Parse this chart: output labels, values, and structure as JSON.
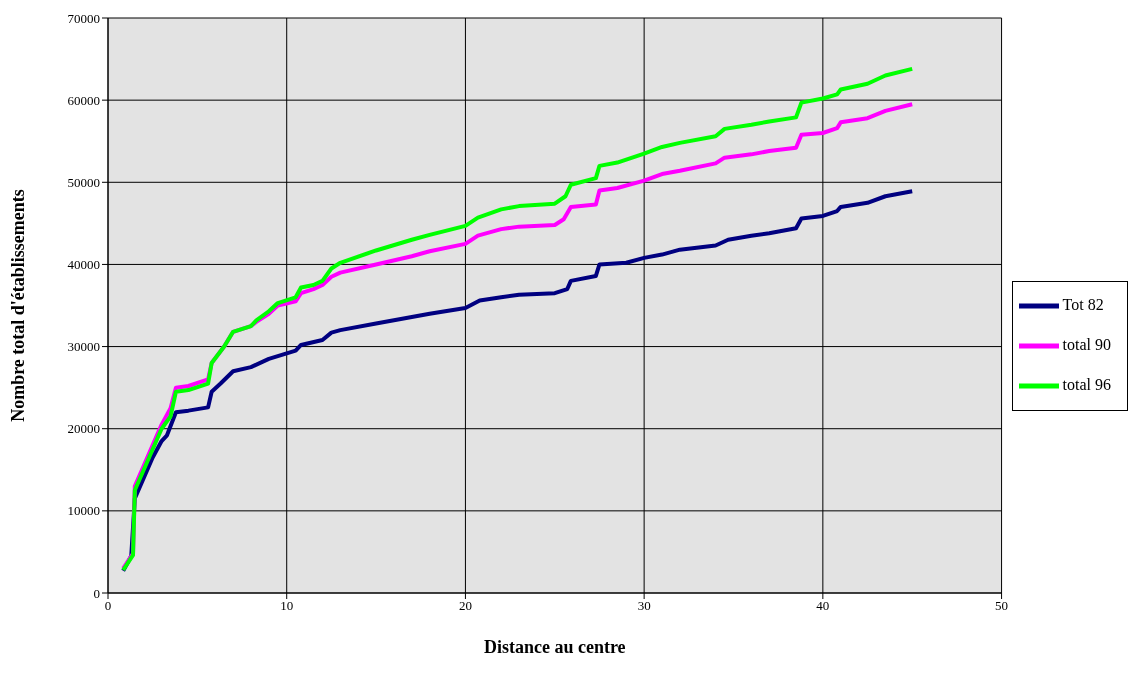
{
  "chart_data": {
    "type": "line",
    "xlabel": "Distance au centre",
    "ylabel": "Nombre total d'établissements",
    "xlim": [
      0,
      50
    ],
    "xticks": [
      0,
      10,
      20,
      30,
      40,
      50
    ],
    "ylim": [
      0,
      70000
    ],
    "yticks": [
      0,
      10000,
      20000,
      30000,
      40000,
      50000,
      60000,
      70000
    ],
    "grid": true,
    "legend": "right",
    "marker": "none",
    "line_style": "solid",
    "series": [
      {
        "name": "Tot 82",
        "color": "#000080",
        "x": [
          0.85,
          1.3,
          1.5,
          2,
          2.5,
          3,
          3.3,
          3.8,
          4.5,
          5.6,
          5.8,
          6.3,
          7,
          8,
          9,
          10.5,
          10.8,
          12,
          12.5,
          13,
          15,
          17,
          18,
          20,
          20.8,
          22,
          23,
          25,
          25.7,
          25.9,
          27.3,
          27.5,
          29,
          30,
          31,
          32,
          34,
          34.7,
          36,
          37,
          38.5,
          38.8,
          40,
          40.8,
          41,
          42.5,
          43.5,
          45
        ],
        "values": [
          2700,
          4500,
          11500,
          14000,
          16500,
          18500,
          19200,
          22000,
          22200,
          22600,
          24500,
          25500,
          27000,
          27500,
          28500,
          29500,
          30200,
          30800,
          31700,
          32000,
          32800,
          33600,
          34000,
          34700,
          35600,
          36000,
          36300,
          36500,
          37000,
          38000,
          38600,
          40000,
          40200,
          40800,
          41200,
          41800,
          42300,
          43000,
          43500,
          43800,
          44400,
          45600,
          45900,
          46500,
          47000,
          47500,
          48300,
          48900
        ]
      },
      {
        "name": "total 90",
        "color": "#ff00ff",
        "x": [
          0.85,
          1.4,
          1.5,
          2,
          2.5,
          3,
          3.5,
          3.8,
          4.5,
          5.6,
          5.8,
          6.5,
          7,
          8,
          8.3,
          9,
          9.5,
          10.5,
          10.8,
          11.5,
          12,
          12.5,
          13,
          15,
          17,
          18,
          20,
          20.7,
          22,
          23,
          25,
          25.5,
          25.9,
          27.3,
          27.5,
          28.5,
          30,
          31,
          32,
          34,
          34.5,
          36,
          37,
          38.5,
          38.8,
          40,
          40.8,
          41,
          42.5,
          43.5,
          45
        ],
        "values": [
          3000,
          4800,
          13000,
          15500,
          18000,
          20500,
          22500,
          25000,
          25200,
          26000,
          28000,
          30000,
          31800,
          32500,
          33000,
          34000,
          35000,
          35500,
          36500,
          37000,
          37500,
          38500,
          39000,
          40000,
          41000,
          41600,
          42500,
          43500,
          44300,
          44600,
          44800,
          45500,
          47000,
          47300,
          49000,
          49300,
          50200,
          51000,
          51400,
          52300,
          53000,
          53400,
          53800,
          54200,
          55800,
          56000,
          56600,
          57300,
          57800,
          58700,
          59500
        ]
      },
      {
        "name": "total 96",
        "color": "#00ff00",
        "x": [
          0.85,
          1.4,
          1.5,
          2,
          2.5,
          3,
          3.5,
          3.8,
          4.5,
          5.6,
          5.8,
          6.5,
          7,
          8,
          8.3,
          9,
          9.5,
          10.5,
          10.8,
          11.5,
          12,
          12.5,
          13,
          15,
          17,
          18,
          20,
          20.7,
          22,
          23,
          25,
          25.6,
          25.9,
          27.3,
          27.5,
          28.5,
          30,
          31,
          32,
          34,
          34.5,
          36,
          37,
          38.5,
          38.8,
          40,
          40.8,
          41,
          42.5,
          43.5,
          45
        ],
        "values": [
          2800,
          4600,
          12500,
          15000,
          17500,
          20000,
          21500,
          24500,
          24700,
          25500,
          28000,
          30000,
          31800,
          32500,
          33200,
          34300,
          35300,
          36000,
          37200,
          37500,
          38000,
          39500,
          40200,
          41700,
          43000,
          43600,
          44700,
          45700,
          46700,
          47100,
          47400,
          48300,
          49700,
          50500,
          52000,
          52400,
          53500,
          54300,
          54800,
          55600,
          56500,
          57000,
          57400,
          57900,
          59700,
          60200,
          60700,
          61300,
          62000,
          63000,
          63800
        ]
      }
    ]
  }
}
